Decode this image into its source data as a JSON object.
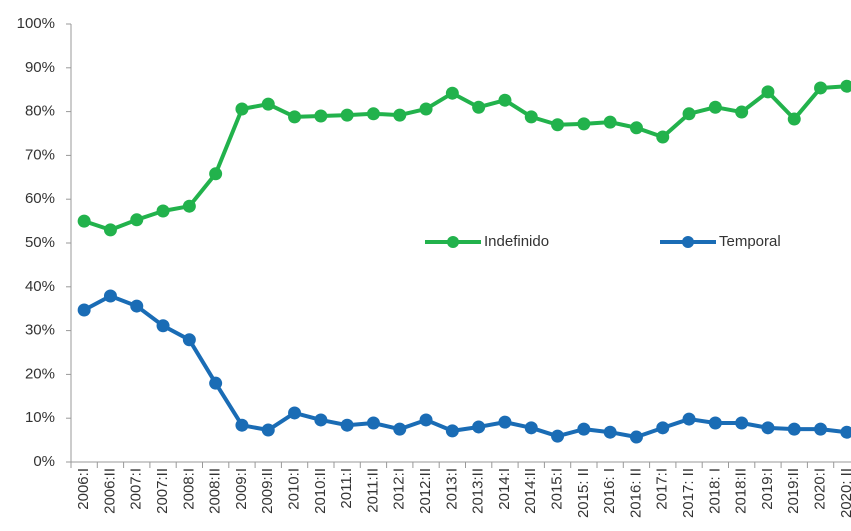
{
  "chart_data": {
    "type": "line",
    "categories": [
      "2006:I",
      "2006:II",
      "2007:I",
      "2007:II",
      "2008:I",
      "2008:II",
      "2009:I",
      "2009:II",
      "2010:I",
      "2010:II",
      "2011:I",
      "2011:II",
      "2012:I",
      "2012:II",
      "2013:I",
      "2013:II",
      "2014:I",
      "2014:II",
      "2015:I",
      "2015: II",
      "2016: I",
      "2016: II",
      "2017:I",
      "2017: II",
      "2018: I",
      "2018:II",
      "2019:I",
      "2019:II",
      "2020:I",
      "2020: II"
    ],
    "series": [
      {
        "name": "Indefinido",
        "color": "#22b24c",
        "values": [
          55.0,
          53.0,
          55.3,
          57.3,
          58.4,
          65.8,
          80.6,
          81.7,
          78.8,
          79.0,
          79.2,
          79.5,
          79.2,
          80.6,
          84.2,
          81.0,
          82.6,
          78.8,
          77.0,
          77.2,
          77.6,
          76.3,
          74.2,
          79.5,
          81.0,
          79.9,
          84.5,
          78.3,
          85.4,
          85.8
        ]
      },
      {
        "name": "Temporal",
        "color": "#1a6cb5",
        "values": [
          34.7,
          37.9,
          35.6,
          31.1,
          27.9,
          18.0,
          8.4,
          7.3,
          11.2,
          9.6,
          8.4,
          8.9,
          7.5,
          9.6,
          7.1,
          8.0,
          9.1,
          7.8,
          5.9,
          7.5,
          6.8,
          5.7,
          7.8,
          9.8,
          8.9,
          8.9,
          7.8,
          7.5,
          7.5,
          6.8
        ]
      }
    ],
    "ylim": [
      0,
      100
    ],
    "yticks": [
      {
        "value": 0,
        "label": "0%"
      },
      {
        "value": 10,
        "label": "10%"
      },
      {
        "value": 20,
        "label": "20%"
      },
      {
        "value": 30,
        "label": "30%"
      },
      {
        "value": 40,
        "label": "40%"
      },
      {
        "value": 50,
        "label": "50%"
      },
      {
        "value": 60,
        "label": "60%"
      },
      {
        "value": 70,
        "label": "70%"
      },
      {
        "value": 80,
        "label": "80%"
      },
      {
        "value": 90,
        "label": "90%"
      },
      {
        "value": 100,
        "label": "100%"
      }
    ],
    "grid": false,
    "legend": "center"
  }
}
